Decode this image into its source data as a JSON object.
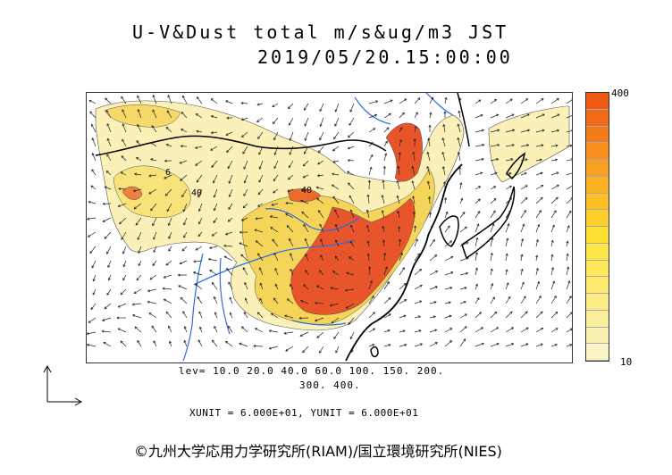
{
  "title": {
    "line1": "U-V&Dust total m/s&ug/m3 JST",
    "line2": "2019/05/20.15:00:00"
  },
  "colorbar": {
    "max_label": "400",
    "min_label": "10",
    "colors": [
      "#fbf3c4",
      "#fbf1b2",
      "#fbee9c",
      "#fcec86",
      "#fde96e",
      "#fee85a",
      "#fde647",
      "#fee030",
      "#fdcf2a",
      "#fcc026",
      "#fbb223",
      "#f9a020",
      "#f78e1d",
      "#f47b1a",
      "#f16a17",
      "#ee5a13"
    ]
  },
  "levels": {
    "line1": "lev= 10.0 20.0 40.0 60.0 100. 150. 200.",
    "line2": "300. 400."
  },
  "units": "XUNIT = 6.000E+01, YUNIT = 6.000E+01",
  "credit": "©九州大学応用力学研究所(RIAM)/国立環境研究所(NIES)",
  "map": {
    "contour_labels": [
      "6",
      "40",
      "40"
    ],
    "accent_colors": {
      "dust_low": "#faf0b8",
      "dust_mid": "#f7d96a",
      "dust_high": "#e8552a",
      "rivers": "#2b6de0",
      "coast": "#000000"
    }
  },
  "reference_vector_icon": "l-shaped-arrow-icon"
}
